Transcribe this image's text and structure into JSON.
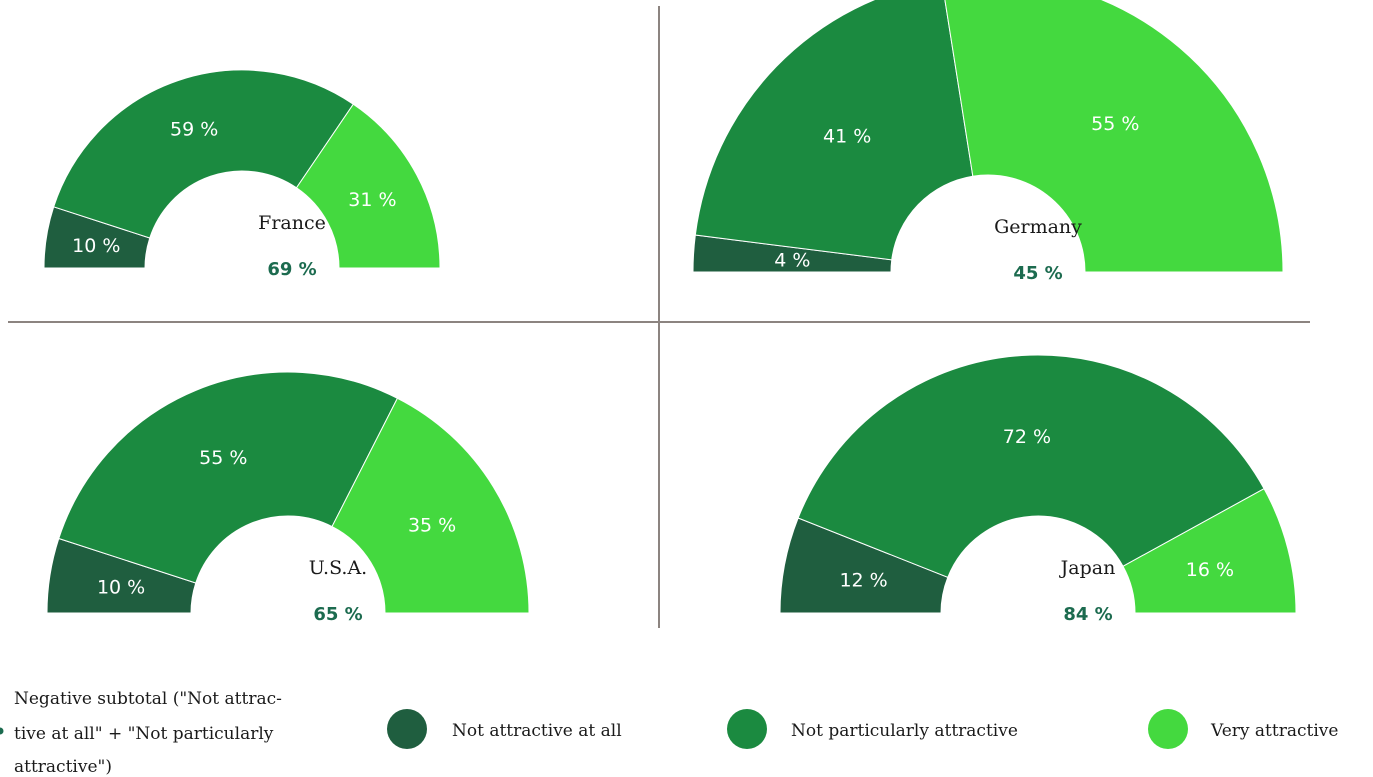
{
  "chart_data": [
    {
      "type": "pie",
      "title": "France",
      "subtotal": "69 %",
      "categories": [
        "Not attractive at all",
        "Not particularly attractive",
        "Very attractive"
      ],
      "values": [
        10,
        59,
        31
      ],
      "labels": [
        "10 %",
        "59 %",
        "31 %"
      ]
    },
    {
      "type": "pie",
      "title": "Germany",
      "subtotal": "45 %",
      "categories": [
        "Not attractive at all",
        "Not particularly attractive",
        "Very attractive"
      ],
      "values": [
        4,
        41,
        55
      ],
      "labels": [
        "4 %",
        "41 %",
        "55 %"
      ]
    },
    {
      "type": "pie",
      "title": "U.S.A.",
      "subtotal": "65 %",
      "categories": [
        "Not attractive at all",
        "Not particularly attractive",
        "Very attractive"
      ],
      "values": [
        10,
        55,
        35
      ],
      "labels": [
        "10 %",
        "55 %",
        "35 %"
      ]
    },
    {
      "type": "pie",
      "title": "Japan",
      "subtotal": "84 %",
      "categories": [
        "Not attractive at all",
        "Not particularly attractive",
        "Very attractive"
      ],
      "values": [
        12,
        72,
        16
      ],
      "labels": [
        "12 %",
        "72 %",
        "16 %"
      ]
    }
  ],
  "legend": {
    "subtotal_lines": [
      "Negative subtotal (\"Not attrac-",
      "tive at all\" + \"Not particularly",
      "attractive\")"
    ],
    "items": [
      {
        "label": "Not attractive at all",
        "color": "#1f5e3f"
      },
      {
        "label": "Not particularly attractive",
        "color": "#1b8a40"
      },
      {
        "label": "Very attractive",
        "color": "#44d93f"
      }
    ]
  },
  "colors": {
    "not_attractive_at_all": "#1f5e3f",
    "not_particularly_attractive": "#1b8a40",
    "very_attractive": "#44d93f",
    "subtotal_text": "#1c6b4f",
    "divider": "#8c8480"
  }
}
